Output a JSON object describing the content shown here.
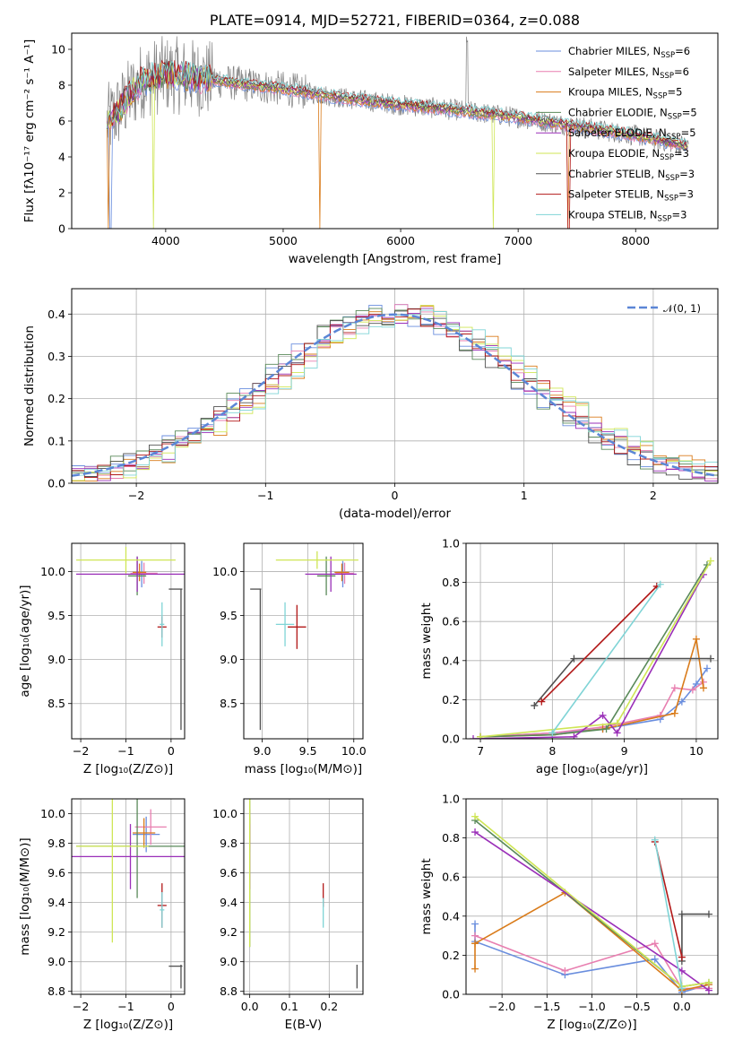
{
  "colors": [
    "#6a8ede",
    "#e87fb0",
    "#d97b1a",
    "#5a8a5a",
    "#9a2fb8",
    "#cfe655",
    "#505050",
    "#b21818",
    "#7fd4d6"
  ],
  "chart_data": [
    {
      "id": "spectrum",
      "type": "line",
      "title": "PLATE=0914, MJD=52721, FIBERID=0364, z=0.088",
      "xlabel": "wavelength [Angstrom, rest frame]",
      "ylabel": "Flux [fλ10⁻¹⁷ erg cm⁻² s⁻¹ A⁻¹]",
      "xlim": [
        3200,
        8700
      ],
      "ylim": [
        0,
        10.9
      ],
      "xticks": [
        4000,
        5000,
        6000,
        7000,
        8000
      ],
      "yticks": [
        0,
        2,
        4,
        6,
        8,
        10
      ],
      "grid": false,
      "legend_position": "upper-right",
      "continuum": {
        "x": [
          3500,
          3600,
          3800,
          4000,
          4300,
          4600,
          5000,
          5500,
          6000,
          6500,
          7000,
          7500,
          8000,
          8450
        ],
        "y": [
          5.9,
          6.6,
          8.3,
          8.6,
          8.4,
          8.1,
          7.8,
          7.3,
          6.9,
          6.6,
          6.2,
          5.7,
          5.2,
          4.6
        ]
      },
      "series": [
        {
          "name": "Chabrier MILES, N_SSP=6",
          "label_main": "Chabrier MILES, N",
          "label_sub": "SSP",
          "label_tail": "=6"
        },
        {
          "name": "Salpeter MILES, N_SSP=6",
          "label_main": "Salpeter MILES, N",
          "label_sub": "SSP",
          "label_tail": "=6"
        },
        {
          "name": "Kroupa MILES, N_SSP=5",
          "label_main": "Kroupa MILES, N",
          "label_sub": "SSP",
          "label_tail": "=5"
        },
        {
          "name": "Chabrier ELODIE, N_SSP=5",
          "label_main": "Chabrier ELODIE, N",
          "label_sub": "SSP",
          "label_tail": "=5"
        },
        {
          "name": "Salpeter ELODIE, N_SSP=5",
          "label_main": "Salpeter ELODIE, N",
          "label_sub": "SSP",
          "label_tail": "=5"
        },
        {
          "name": "Kroupa ELODIE, N_SSP=3",
          "label_main": "Kroupa ELODIE, N",
          "label_sub": "SSP",
          "label_tail": "=3"
        },
        {
          "name": "Chabrier STELIB, N_SSP=3",
          "label_main": "Chabrier STELIB, N",
          "label_sub": "SSP",
          "label_tail": "=3"
        },
        {
          "name": "Salpeter STELIB, N_SSP=3",
          "label_main": "Salpeter STELIB, N",
          "label_sub": "SSP",
          "label_tail": "=3"
        },
        {
          "name": "Kroupa STELIB, N_SSP=3",
          "label_main": "Kroupa STELIB, N",
          "label_sub": "SSP",
          "label_tail": "=3"
        }
      ]
    },
    {
      "id": "residuals",
      "type": "line",
      "xlabel": "(data-model)/error",
      "ylabel": "Normed distribution",
      "xlim": [
        -2.5,
        2.5
      ],
      "ylim": [
        0,
        0.46
      ],
      "xticks": [
        -2,
        -1,
        0,
        1,
        2
      ],
      "yticks": [
        0.0,
        0.1,
        0.2,
        0.3,
        0.4
      ],
      "grid": true,
      "legend_position": "upper-right",
      "legend": "𝒩(0, 1)",
      "gaussian": {
        "mean": 0,
        "sigma": 1
      },
      "bin_width": 0.1
    },
    {
      "id": "age_vs_Z",
      "type": "scatter",
      "xlabel": "Z [log₁₀(Z/Z⊙)]",
      "ylabel": "age  [log₁₀(age/yr)]",
      "xlim": [
        -2.2,
        0.3
      ],
      "ylim": [
        8.1,
        10.32
      ],
      "xticks": [
        -2,
        -1,
        0
      ],
      "yticks": [
        8.5,
        9.0,
        9.5,
        10.0
      ],
      "grid": true,
      "points": [
        {
          "x": -0.65,
          "y": 9.97,
          "xerr": 0.2,
          "yerr": 0.15,
          "color": 0
        },
        {
          "x": -0.6,
          "y": 9.98,
          "xerr": 0.3,
          "yerr": 0.12,
          "color": 1
        },
        {
          "x": -0.7,
          "y": 9.99,
          "xerr": 0.15,
          "yerr": 0.1,
          "color": 2
        },
        {
          "x": -0.75,
          "y": 9.95,
          "xerr": 0.2,
          "yerr": 0.22,
          "color": 3
        },
        {
          "x": -0.75,
          "y": 9.97,
          "xerr": 1.35,
          "yerr": 0.2,
          "color": 4
        },
        {
          "x": -1.0,
          "y": 10.13,
          "xerr": 1.1,
          "yerr": 0.15,
          "color": 5
        },
        {
          "x": 0.1,
          "y": 9.8,
          "xerr": 0.15,
          "yerr": 0.0,
          "color": 6
        },
        {
          "x": 0.22,
          "y": 9.0,
          "xerr": 0.0,
          "yerr": 0.8,
          "color": 6
        },
        {
          "x": -0.2,
          "y": 9.37,
          "xerr": 0.1,
          "yerr": 0.12,
          "color": 7
        },
        {
          "x": -0.2,
          "y": 9.4,
          "xerr": 0.05,
          "yerr": 0.25,
          "color": 8
        }
      ]
    },
    {
      "id": "age_vs_mass",
      "type": "scatter",
      "xlabel": "mass [log₁₀(M/M⊙)]",
      "xlim": [
        8.8,
        10.1
      ],
      "ylim": [
        8.1,
        10.32
      ],
      "xticks": [
        9.0,
        9.5,
        10.0
      ],
      "yticks": [
        8.5,
        9.0,
        9.5,
        10.0
      ],
      "grid": true,
      "points": [
        {
          "x": 9.88,
          "y": 9.97,
          "xerr": 0.12,
          "yerr": 0.15,
          "color": 0
        },
        {
          "x": 9.9,
          "y": 9.98,
          "xerr": 0.1,
          "yerr": 0.12,
          "color": 1
        },
        {
          "x": 9.87,
          "y": 9.99,
          "xerr": 0.08,
          "yerr": 0.1,
          "color": 2
        },
        {
          "x": 9.7,
          "y": 9.95,
          "xerr": 0.1,
          "yerr": 0.22,
          "color": 3
        },
        {
          "x": 9.75,
          "y": 9.97,
          "xerr": 0.28,
          "yerr": 0.2,
          "color": 4
        },
        {
          "x": 9.6,
          "y": 10.13,
          "xerr": 0.45,
          "yerr": 0.1,
          "color": 5
        },
        {
          "x": 8.93,
          "y": 9.8,
          "xerr": 0.06,
          "yerr": 0.0,
          "color": 6
        },
        {
          "x": 8.98,
          "y": 9.0,
          "xerr": 0.0,
          "yerr": 0.8,
          "color": 6
        },
        {
          "x": 9.38,
          "y": 9.37,
          "xerr": 0.1,
          "yerr": 0.25,
          "color": 7
        },
        {
          "x": 9.25,
          "y": 9.4,
          "xerr": 0.1,
          "yerr": 0.25,
          "color": 8
        }
      ]
    },
    {
      "id": "massweight_vs_age",
      "type": "line",
      "xlabel": "age  [log₁₀(age/yr)]",
      "ylabel": "mass weight",
      "xlim": [
        6.8,
        10.3
      ],
      "ylim": [
        0,
        1.0
      ],
      "xticks": [
        7,
        8,
        9,
        10
      ],
      "yticks": [
        0.0,
        0.2,
        0.4,
        0.6,
        0.8,
        1.0
      ],
      "grid": true,
      "series": [
        {
          "color": 0,
          "x": [
            7.0,
            8.0,
            8.7,
            9.5,
            9.8,
            10.0,
            10.15
          ],
          "y": [
            0.01,
            0.03,
            0.05,
            0.1,
            0.19,
            0.28,
            0.36
          ]
        },
        {
          "color": 1,
          "x": [
            7.0,
            8.0,
            8.7,
            9.5,
            9.7,
            9.95,
            10.1
          ],
          "y": [
            0.01,
            0.03,
            0.06,
            0.12,
            0.26,
            0.25,
            0.29
          ]
        },
        {
          "color": 2,
          "x": [
            7.0,
            8.0,
            8.7,
            9.7,
            10.0,
            10.1
          ],
          "y": [
            0.01,
            0.02,
            0.05,
            0.13,
            0.51,
            0.26
          ]
        },
        {
          "color": 3,
          "x": [
            7.0,
            8.0,
            8.75,
            10.15
          ],
          "y": [
            0.01,
            0.02,
            0.05,
            0.89
          ]
        },
        {
          "color": 4,
          "x": [
            6.9,
            8.3,
            8.7,
            8.9,
            10.1
          ],
          "y": [
            0.0,
            0.01,
            0.12,
            0.03,
            0.84
          ]
        },
        {
          "color": 5,
          "x": [
            7.0,
            8.9,
            10.2
          ],
          "y": [
            0.01,
            0.08,
            0.91
          ]
        },
        {
          "color": 6,
          "x": [
            7.75,
            8.3,
            10.2
          ],
          "y": [
            0.17,
            0.41,
            0.41
          ]
        },
        {
          "color": 7,
          "x": [
            7.85,
            9.45
          ],
          "y": [
            0.19,
            0.78
          ]
        },
        {
          "color": 8,
          "x": [
            8.0,
            9.5
          ],
          "y": [
            0.03,
            0.79
          ]
        }
      ]
    },
    {
      "id": "mass_vs_Z",
      "type": "scatter",
      "xlabel": "Z [log₁₀(Z/Z⊙)]",
      "ylabel": "mass [log₁₀(M/M⊙)]",
      "xlim": [
        -2.2,
        0.3
      ],
      "ylim": [
        8.78,
        10.1
      ],
      "xticks": [
        -2,
        -1,
        0
      ],
      "yticks": [
        8.8,
        9.0,
        9.2,
        9.4,
        9.6,
        9.8,
        10.0
      ],
      "grid": true,
      "points": [
        {
          "x": -0.55,
          "y": 9.86,
          "xerr": 0.3,
          "yerr": 0.12,
          "color": 0
        },
        {
          "x": -0.45,
          "y": 9.91,
          "xerr": 0.35,
          "yerr": 0.12,
          "color": 1
        },
        {
          "x": -0.6,
          "y": 9.87,
          "xerr": 0.25,
          "yerr": 0.1,
          "color": 2
        },
        {
          "x": -0.75,
          "y": 9.78,
          "xerr": 1.35,
          "yerr": 0.35,
          "color": 3
        },
        {
          "x": -0.9,
          "y": 9.71,
          "xerr": 1.3,
          "yerr": 0.22,
          "color": 4
        },
        {
          "x": -1.3,
          "y": 9.78,
          "xerr": 0.8,
          "yerr": 0.65,
          "color": 5
        },
        {
          "x": 0.1,
          "y": 8.97,
          "xerr": 0.15,
          "yerr": 0.0,
          "color": 6
        },
        {
          "x": 0.22,
          "y": 8.9,
          "xerr": 0.0,
          "yerr": 0.08,
          "color": 6
        },
        {
          "x": -0.2,
          "y": 9.38,
          "xerr": 0.1,
          "yerr": 0.15,
          "color": 7
        },
        {
          "x": -0.2,
          "y": 9.35,
          "xerr": 0.05,
          "yerr": 0.12,
          "color": 8
        }
      ]
    },
    {
      "id": "mass_vs_ebv",
      "type": "scatter",
      "xlabel": "E(B-V)",
      "xlim": [
        -0.015,
        0.285
      ],
      "ylim": [
        8.78,
        10.1
      ],
      "xticks": [
        0.0,
        0.1,
        0.2
      ],
      "yticks": [
        8.8,
        9.0,
        9.2,
        9.4,
        9.6,
        9.8,
        10.0
      ],
      "grid": true,
      "points": [
        {
          "x": 0.0,
          "y": 9.86,
          "xerr": 0.0,
          "yerr": 0.12,
          "color": 0
        },
        {
          "x": 0.0,
          "y": 9.91,
          "xerr": 0.0,
          "yerr": 0.12,
          "color": 1
        },
        {
          "x": 0.0,
          "y": 9.87,
          "xerr": 0.0,
          "yerr": 0.1,
          "color": 2
        },
        {
          "x": 0.0,
          "y": 9.6,
          "xerr": 0.0,
          "yerr": 0.5,
          "color": 3
        },
        {
          "x": 0.0,
          "y": 9.71,
          "xerr": 0.0,
          "yerr": 0.22,
          "color": 4
        },
        {
          "x": 0.0,
          "y": 9.6,
          "xerr": 0.0,
          "yerr": 0.5,
          "color": 5
        },
        {
          "x": 0.27,
          "y": 8.9,
          "xerr": 0.0,
          "yerr": 0.08,
          "color": 6
        },
        {
          "x": 0.185,
          "y": 9.45,
          "xerr": 0.0,
          "yerr": 0.08,
          "color": 7
        },
        {
          "x": 0.185,
          "y": 9.33,
          "xerr": 0.0,
          "yerr": 0.1,
          "color": 8
        }
      ]
    },
    {
      "id": "massweight_vs_Z",
      "type": "line",
      "xlabel": "Z [log₁₀(Z/Z⊙)]",
      "ylabel": "mass weight",
      "xlim": [
        -2.4,
        0.4
      ],
      "ylim": [
        0,
        1.0
      ],
      "xticks": [
        -2.0,
        -1.5,
        -1.0,
        -0.5,
        0.0
      ],
      "yticks": [
        0.0,
        0.2,
        0.4,
        0.6,
        0.8,
        1.0
      ],
      "grid": true,
      "series": [
        {
          "color": 0,
          "x": [
            -2.3,
            -2.3,
            -1.3,
            -0.3,
            0.0,
            0.3
          ],
          "y": [
            0.36,
            0.27,
            0.1,
            0.18,
            0.01,
            0.05
          ]
        },
        {
          "color": 1,
          "x": [
            -2.3,
            -1.3,
            -0.3,
            0.0,
            0.3
          ],
          "y": [
            0.3,
            0.12,
            0.26,
            0.03,
            0.03
          ]
        },
        {
          "color": 2,
          "x": [
            -2.3,
            -2.3,
            -1.3,
            0.0,
            0.3
          ],
          "y": [
            0.13,
            0.26,
            0.52,
            0.02,
            0.05
          ]
        },
        {
          "color": 3,
          "x": [
            -2.3,
            0.0,
            0.3
          ],
          "y": [
            0.89,
            0.04,
            0.06
          ]
        },
        {
          "color": 4,
          "x": [
            -2.3,
            0.0,
            0.3
          ],
          "y": [
            0.83,
            0.12,
            0.02
          ]
        },
        {
          "color": 5,
          "x": [
            -2.3,
            0.0,
            0.3
          ],
          "y": [
            0.91,
            0.04,
            0.06
          ]
        },
        {
          "color": 6,
          "x": [
            0.0,
            0.0,
            0.3
          ],
          "y": [
            0.17,
            0.41,
            0.41
          ]
        },
        {
          "color": 7,
          "x": [
            -0.3,
            0.0
          ],
          "y": [
            0.78,
            0.19
          ]
        },
        {
          "color": 8,
          "x": [
            -0.3,
            0.0
          ],
          "y": [
            0.79,
            0.03
          ]
        }
      ]
    }
  ]
}
